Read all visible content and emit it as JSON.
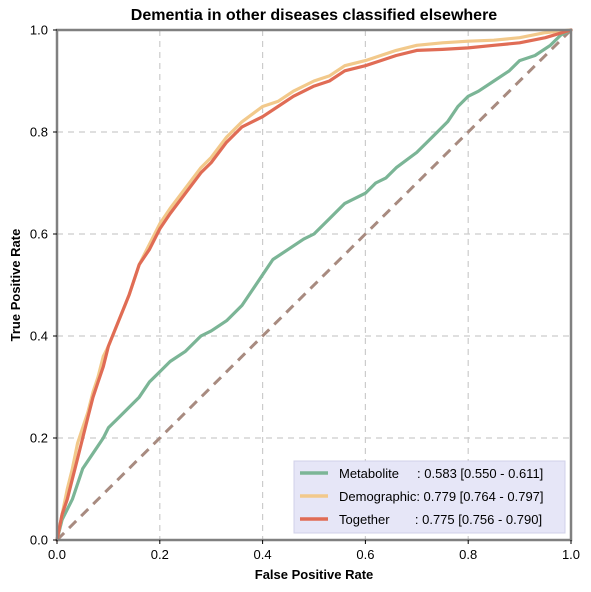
{
  "chart_data": {
    "type": "line",
    "title": "Dementia in other diseases classified elsewhere",
    "xlabel": "False Positive Rate",
    "ylabel": "True Positive Rate",
    "xlim": [
      0,
      1
    ],
    "ylim": [
      0,
      1
    ],
    "x_ticks": [
      "0.0",
      "0.2",
      "0.4",
      "0.6",
      "0.8",
      "1.0"
    ],
    "y_ticks": [
      "0.0",
      "0.2",
      "0.4",
      "0.6",
      "0.8",
      "1.0"
    ],
    "grid": true,
    "legend_position": "lower-right",
    "diagonal": {
      "x": [
        0,
        1
      ],
      "y": [
        0,
        1
      ],
      "color": "#a88b80",
      "style": "dashed"
    },
    "series": [
      {
        "name": "Metabolite",
        "legend_label": "Metabolite     : 0.583 [0.550 - 0.611]",
        "color": "#7bb596",
        "x": [
          0,
          0.01,
          0.03,
          0.05,
          0.07,
          0.09,
          0.1,
          0.12,
          0.14,
          0.16,
          0.18,
          0.2,
          0.22,
          0.25,
          0.28,
          0.3,
          0.33,
          0.36,
          0.38,
          0.4,
          0.42,
          0.45,
          0.48,
          0.5,
          0.53,
          0.56,
          0.6,
          0.62,
          0.64,
          0.66,
          0.7,
          0.73,
          0.76,
          0.78,
          0.8,
          0.82,
          0.85,
          0.88,
          0.9,
          0.93,
          0.96,
          0.98,
          1.0
        ],
        "y": [
          0,
          0.04,
          0.08,
          0.14,
          0.17,
          0.2,
          0.22,
          0.24,
          0.26,
          0.28,
          0.31,
          0.33,
          0.35,
          0.37,
          0.4,
          0.41,
          0.43,
          0.46,
          0.49,
          0.52,
          0.55,
          0.57,
          0.59,
          0.6,
          0.63,
          0.66,
          0.68,
          0.7,
          0.71,
          0.73,
          0.76,
          0.79,
          0.82,
          0.85,
          0.87,
          0.88,
          0.9,
          0.92,
          0.94,
          0.95,
          0.97,
          0.99,
          1.0
        ]
      },
      {
        "name": "Demographic",
        "legend_label": "Demographic: 0.779 [0.764 - 0.797]",
        "color": "#f2c98b",
        "x": [
          0,
          0.01,
          0.02,
          0.03,
          0.04,
          0.05,
          0.06,
          0.07,
          0.08,
          0.09,
          0.1,
          0.12,
          0.14,
          0.16,
          0.18,
          0.2,
          0.22,
          0.25,
          0.28,
          0.3,
          0.33,
          0.36,
          0.4,
          0.43,
          0.46,
          0.5,
          0.53,
          0.56,
          0.6,
          0.63,
          0.66,
          0.7,
          0.75,
          0.8,
          0.85,
          0.9,
          0.95,
          1.0
        ],
        "y": [
          0,
          0.05,
          0.1,
          0.14,
          0.19,
          0.22,
          0.25,
          0.29,
          0.32,
          0.36,
          0.38,
          0.43,
          0.48,
          0.54,
          0.58,
          0.62,
          0.65,
          0.69,
          0.73,
          0.75,
          0.79,
          0.82,
          0.85,
          0.86,
          0.88,
          0.9,
          0.91,
          0.93,
          0.94,
          0.95,
          0.96,
          0.97,
          0.975,
          0.978,
          0.98,
          0.985,
          0.995,
          1.0
        ]
      },
      {
        "name": "Together",
        "legend_label": "Together       : 0.775 [0.756 - 0.790]",
        "color": "#e06c55",
        "x": [
          0,
          0.01,
          0.02,
          0.03,
          0.04,
          0.05,
          0.06,
          0.07,
          0.08,
          0.09,
          0.1,
          0.12,
          0.14,
          0.16,
          0.18,
          0.2,
          0.22,
          0.25,
          0.28,
          0.3,
          0.33,
          0.36,
          0.4,
          0.43,
          0.46,
          0.5,
          0.53,
          0.56,
          0.6,
          0.63,
          0.66,
          0.7,
          0.75,
          0.8,
          0.85,
          0.9,
          0.95,
          1.0
        ],
        "y": [
          0,
          0.05,
          0.08,
          0.12,
          0.16,
          0.2,
          0.24,
          0.28,
          0.31,
          0.34,
          0.38,
          0.43,
          0.48,
          0.54,
          0.57,
          0.61,
          0.64,
          0.68,
          0.72,
          0.74,
          0.78,
          0.81,
          0.83,
          0.85,
          0.87,
          0.89,
          0.9,
          0.92,
          0.93,
          0.94,
          0.95,
          0.96,
          0.962,
          0.965,
          0.97,
          0.975,
          0.985,
          1.0
        ]
      }
    ]
  }
}
